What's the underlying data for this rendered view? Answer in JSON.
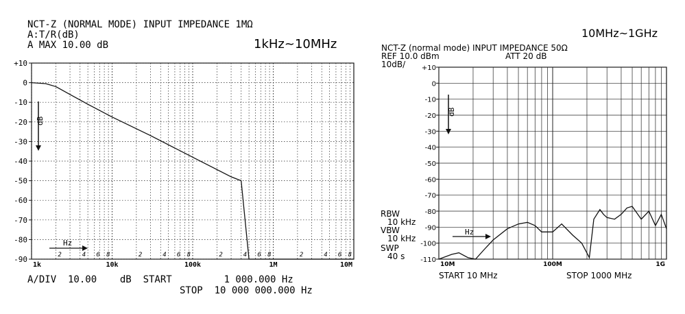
{
  "left": {
    "header": {
      "line1": "NCT-Z (NORMAL MODE) INPUT IMPEDANCE 1MΩ",
      "line2": "A:T/R(dB)",
      "line3": "A MAX   10.00    dB"
    },
    "range_label": "1kHz~10MHz",
    "footer": {
      "line1": "A/DIV  10.00    dB  START         1 000.000 Hz",
      "line2": "STOP  10 000 000.000 Hz"
    },
    "axis_annotations": {
      "y_arrow": "dB",
      "x_arrow": "Hz"
    }
  },
  "right": {
    "range_label": "10MHz~1GHz",
    "header": {
      "line1": "NCT-Z (normal mode) INPUT IMPEDANCE 50Ω",
      "line2_ref": "REF 10.0 dBm",
      "line2_att": "ATT 20 dB",
      "line3": "10dB/"
    },
    "side": {
      "rbw": "RBW",
      "rbw_val": "10 kHz",
      "vbw": "VBW",
      "vbw_val": "10 kHz",
      "swp": "SWP",
      "swp_val": "40 s"
    },
    "footer": {
      "start": "START 10 MHz",
      "stop": "STOP 1000 MHz"
    },
    "axis_annotations": {
      "y_arrow": "dB",
      "x_arrow": "Hz"
    }
  },
  "chart_data": [
    {
      "type": "line",
      "title": "NCT-Z (NORMAL MODE) INPUT IMPEDANCE 1MΩ",
      "xscale": "log",
      "xlim": [
        1000,
        10000000
      ],
      "ylim": [
        -90,
        10
      ],
      "grid": true,
      "grid_style": "dotted",
      "y_ticks": [
        "+10",
        "0",
        "-10",
        "-20",
        "-30",
        "-40",
        "-50",
        "-60",
        "-70",
        "-80",
        "-90"
      ],
      "x_decade_labels": [
        "1k",
        "10k",
        "100k",
        "1M",
        "10M"
      ],
      "x_minor_labels": [
        "2",
        "4",
        "6",
        "8"
      ],
      "series": [
        {
          "x": [
            1000,
            1500,
            2000,
            3000,
            5000,
            10000,
            30000,
            100000,
            300000,
            400000,
            500000,
            1000000,
            10000000
          ],
          "y": [
            0,
            -0.5,
            -2,
            -6,
            -11,
            -17.5,
            -27,
            -38,
            -48,
            -50,
            -90,
            -90,
            -90
          ]
        }
      ]
    },
    {
      "type": "line",
      "title": "NCT-Z (normal mode) INPUT IMPEDANCE 50Ω",
      "xscale": "log",
      "xlim": [
        10000000,
        1000000000
      ],
      "ylim": [
        -110,
        10
      ],
      "grid": true,
      "grid_style": "solid",
      "y_ticks": [
        "+10",
        "0",
        "-10",
        "-20",
        "-30",
        "-40",
        "-50",
        "-60",
        "-70",
        "-80",
        "-90",
        "-100",
        "-110"
      ],
      "x_decade_labels": [
        "10M",
        "100M",
        "1G"
      ],
      "series": [
        {
          "x": [
            10000000,
            13000000,
            15000000,
            18000000,
            21000000,
            25000000,
            30000000,
            40000000,
            50000000,
            60000000,
            70000000,
            80000000,
            100000000,
            120000000,
            150000000,
            180000000,
            210000000,
            230000000,
            260000000,
            280000000,
            300000000,
            350000000,
            400000000,
            450000000,
            500000000,
            600000000,
            700000000,
            800000000,
            900000000,
            1000000000
          ],
          "y": [
            -110,
            -107,
            -106,
            -109,
            -110,
            -104,
            -98,
            -91,
            -88,
            -87,
            -89,
            -93,
            -93,
            -88,
            -95,
            -100,
            -109,
            -85,
            -79,
            -82,
            -84,
            -85,
            -82,
            -78,
            -77,
            -85,
            -80,
            -89,
            -82,
            -91
          ]
        }
      ]
    }
  ]
}
